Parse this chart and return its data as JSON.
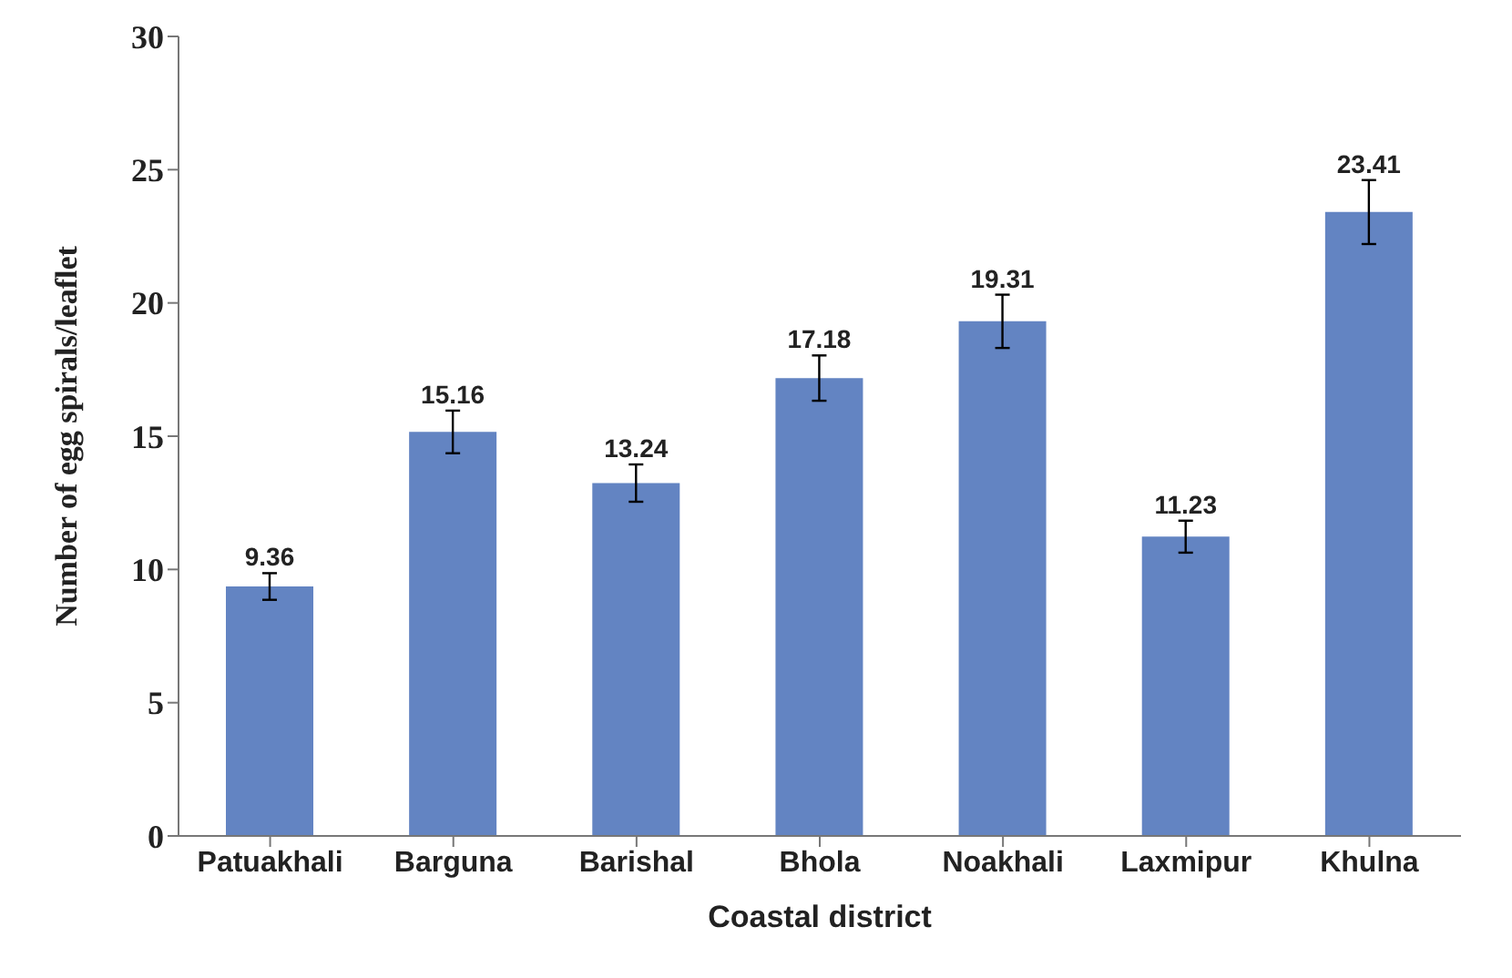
{
  "chart_data": {
    "type": "bar",
    "xlabel": "Coastal district",
    "ylabel": "Number of egg spirals/leaflet",
    "categories": [
      "Patuakhali",
      "Barguna",
      "Barishal",
      "Bhola",
      "Noakhali",
      "Laxmipur",
      "Khulna"
    ],
    "values": [
      9.36,
      15.16,
      13.24,
      17.18,
      19.31,
      11.23,
      23.41
    ],
    "errors": [
      0.5,
      0.8,
      0.7,
      0.85,
      1.0,
      0.6,
      1.2
    ],
    "color": "#6384c2",
    "ylim": [
      0,
      30
    ],
    "yticks": [
      0,
      5,
      10,
      15,
      20,
      25,
      30
    ],
    "grid": false,
    "legend": false,
    "data_labels": true
  }
}
